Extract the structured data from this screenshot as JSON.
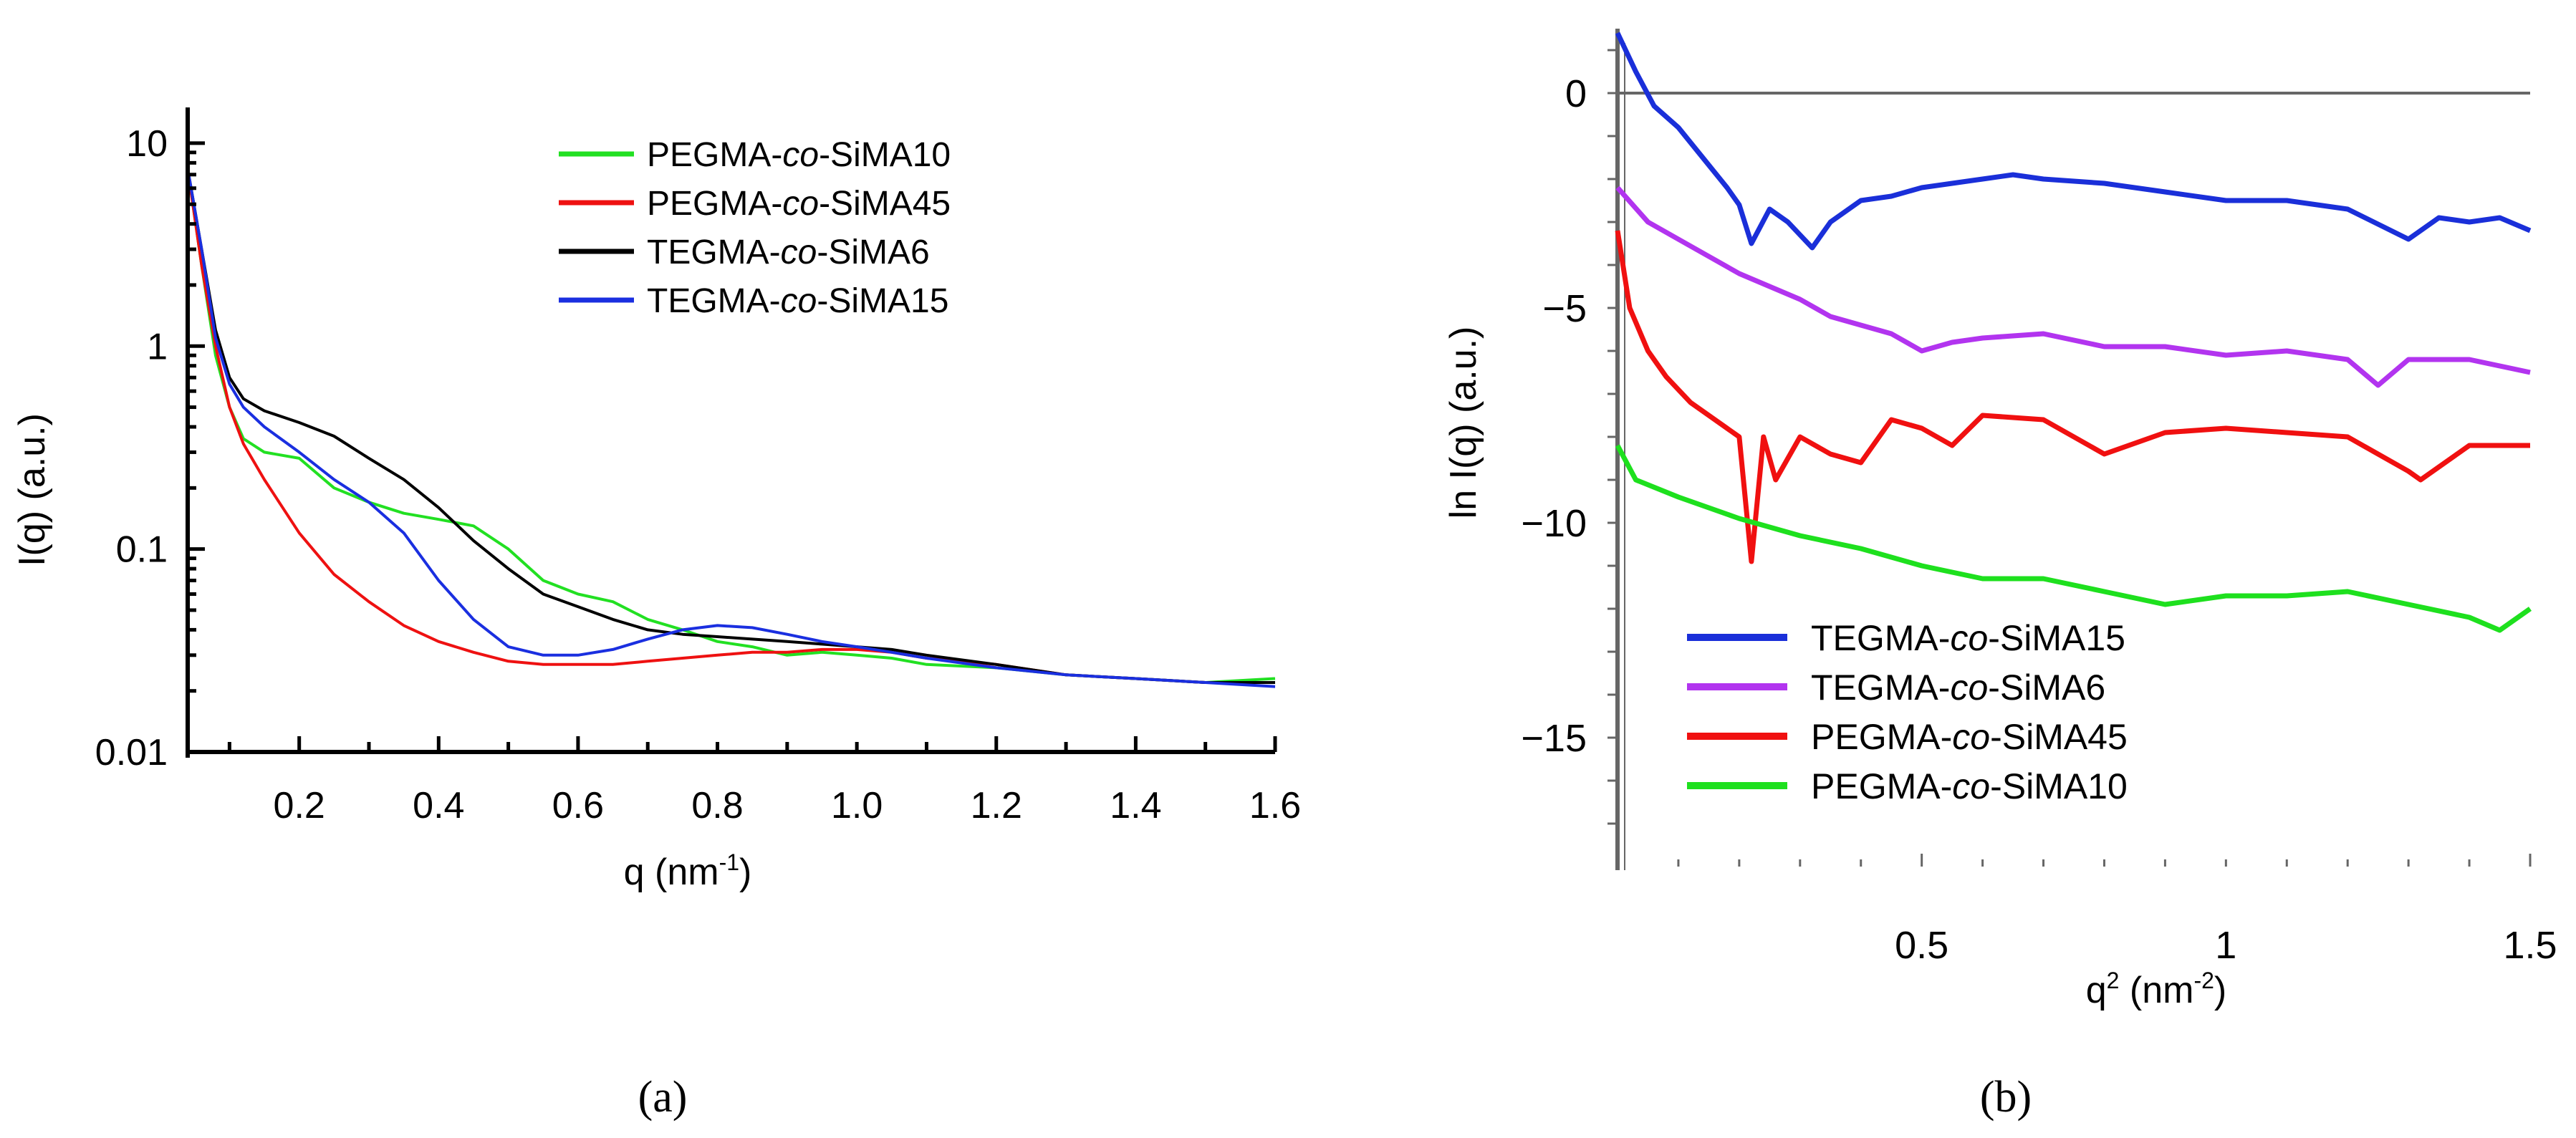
{
  "colors": {
    "green": "#22e022",
    "red": "#ee1111",
    "black": "#000000",
    "blue": "#1a2fe0",
    "blue_b": "#1a2fd9",
    "purple": "#b234ef",
    "red_b": "#f01010",
    "green_b": "#1ee01e",
    "axis": "#000000",
    "axis_b": "#666666"
  },
  "chart_data": [
    {
      "type": "line",
      "title": "",
      "panel_label": "(a)",
      "xlabel_base": "q (nm",
      "xlabel_sup": "-1",
      "xlabel_tail": ")",
      "ylabel": "I(q) (a.u.)",
      "yscale": "log",
      "xlim": [
        0.04,
        1.6
      ],
      "ylim": [
        0.01,
        15
      ],
      "xticks": [
        "0.2",
        "0.4",
        "0.6",
        "0.8",
        "1.0",
        "1.2",
        "1.4",
        "1.6"
      ],
      "yticks": [
        "0.01",
        "0.1",
        "1",
        "10"
      ],
      "legend_position": "top-right",
      "series": [
        {
          "name": "PEGMA-co-SiMA10",
          "name_pre": "PEGMA-",
          "name_it": "co",
          "name_post": "-SiMA10",
          "color_key": "green",
          "x": [
            0.04,
            0.06,
            0.08,
            0.1,
            0.12,
            0.15,
            0.2,
            0.25,
            0.3,
            0.35,
            0.4,
            0.45,
            0.5,
            0.55,
            0.6,
            0.65,
            0.7,
            0.75,
            0.8,
            0.85,
            0.9,
            0.95,
            1.0,
            1.05,
            1.1,
            1.2,
            1.3,
            1.4,
            1.5,
            1.6
          ],
          "y": [
            7.5,
            2.5,
            0.9,
            0.5,
            0.35,
            0.3,
            0.28,
            0.2,
            0.17,
            0.15,
            0.14,
            0.13,
            0.1,
            0.07,
            0.06,
            0.055,
            0.045,
            0.04,
            0.035,
            0.033,
            0.03,
            0.031,
            0.03,
            0.029,
            0.027,
            0.026,
            0.024,
            0.023,
            0.022,
            0.023
          ]
        },
        {
          "name": "PEGMA-co-SiMA45",
          "name_pre": "PEGMA-",
          "name_it": "co",
          "name_post": "-SiMA45",
          "color_key": "red",
          "x": [
            0.04,
            0.06,
            0.08,
            0.1,
            0.12,
            0.15,
            0.2,
            0.25,
            0.3,
            0.35,
            0.4,
            0.45,
            0.5,
            0.55,
            0.6,
            0.65,
            0.7,
            0.75,
            0.8,
            0.85,
            0.9,
            0.95,
            1.0,
            1.05,
            1.1,
            1.2,
            1.3,
            1.4,
            1.5,
            1.6
          ],
          "y": [
            7.5,
            2.5,
            1.0,
            0.5,
            0.33,
            0.22,
            0.12,
            0.075,
            0.055,
            0.042,
            0.035,
            0.031,
            0.028,
            0.027,
            0.027,
            0.027,
            0.028,
            0.029,
            0.03,
            0.031,
            0.031,
            0.032,
            0.032,
            0.031,
            0.029,
            0.027,
            0.024,
            0.023,
            0.022,
            0.022
          ]
        },
        {
          "name": "TEGMA-co-SiMA6",
          "name_pre": "TEGMA-",
          "name_it": "co",
          "name_post": "-SiMA6",
          "color_key": "black",
          "x": [
            0.04,
            0.06,
            0.08,
            0.1,
            0.12,
            0.15,
            0.2,
            0.25,
            0.3,
            0.35,
            0.4,
            0.45,
            0.5,
            0.55,
            0.6,
            0.65,
            0.7,
            0.75,
            0.8,
            0.85,
            0.9,
            0.95,
            1.0,
            1.05,
            1.1,
            1.2,
            1.3,
            1.4,
            1.5,
            1.6
          ],
          "y": [
            7.5,
            3.0,
            1.2,
            0.7,
            0.55,
            0.48,
            0.42,
            0.36,
            0.28,
            0.22,
            0.16,
            0.11,
            0.08,
            0.06,
            0.052,
            0.045,
            0.04,
            0.038,
            0.037,
            0.036,
            0.035,
            0.034,
            0.033,
            0.032,
            0.03,
            0.027,
            0.024,
            0.023,
            0.022,
            0.022
          ]
        },
        {
          "name": "TEGMA-co-SiMA15",
          "name_pre": "TEGMA-",
          "name_it": "co",
          "name_post": "-SiMA15",
          "color_key": "blue",
          "x": [
            0.04,
            0.06,
            0.08,
            0.1,
            0.12,
            0.15,
            0.2,
            0.25,
            0.3,
            0.35,
            0.4,
            0.45,
            0.5,
            0.55,
            0.6,
            0.65,
            0.7,
            0.75,
            0.8,
            0.85,
            0.9,
            0.95,
            1.0,
            1.05,
            1.1,
            1.2,
            1.3,
            1.4,
            1.5,
            1.6
          ],
          "y": [
            7.5,
            3.0,
            1.1,
            0.65,
            0.5,
            0.4,
            0.3,
            0.22,
            0.17,
            0.12,
            0.07,
            0.045,
            0.033,
            0.03,
            0.03,
            0.032,
            0.036,
            0.04,
            0.042,
            0.041,
            0.038,
            0.035,
            0.033,
            0.031,
            0.029,
            0.026,
            0.024,
            0.023,
            0.022,
            0.021
          ]
        }
      ]
    },
    {
      "type": "line",
      "title": "",
      "panel_label": "(b)",
      "xlabel_base": "q",
      "xlabel_sup": "2",
      "xlabel_tail": " (nm",
      "xlabel_sup2": "-2",
      "xlabel_end": ")",
      "ylabel": "ln I(q) (a.u.)",
      "xlim": [
        0,
        1.5
      ],
      "ylim": [
        -18,
        1.5
      ],
      "xticks": [
        "0.5",
        "1",
        "1.5"
      ],
      "yticks": [
        "0",
        "-5",
        "-10",
        "-15"
      ],
      "legend_position": "bottom-left",
      "series": [
        {
          "name": "TEGMA-co-SiMA15",
          "name_pre": "TEGMA-",
          "name_it": "co",
          "name_post": "-SiMA15",
          "color_key": "blue_b",
          "x": [
            0.0,
            0.03,
            0.06,
            0.1,
            0.14,
            0.18,
            0.2,
            0.22,
            0.25,
            0.28,
            0.32,
            0.35,
            0.4,
            0.45,
            0.5,
            0.55,
            0.6,
            0.65,
            0.7,
            0.8,
            0.9,
            1.0,
            1.1,
            1.2,
            1.3,
            1.35,
            1.4,
            1.45,
            1.5
          ],
          "y": [
            1.4,
            0.5,
            -0.3,
            -0.8,
            -1.5,
            -2.2,
            -2.6,
            -3.5,
            -2.7,
            -3.0,
            -3.6,
            -3.0,
            -2.5,
            -2.4,
            -2.2,
            -2.1,
            -2.0,
            -1.9,
            -2.0,
            -2.1,
            -2.3,
            -2.5,
            -2.5,
            -2.7,
            -3.4,
            -2.9,
            -3.0,
            -2.9,
            -3.2
          ]
        },
        {
          "name": "TEGMA-co-SiMA6",
          "name_pre": "TEGMA-",
          "name_it": "co",
          "name_post": "-SiMA6",
          "color_key": "purple",
          "x": [
            0.0,
            0.05,
            0.1,
            0.15,
            0.2,
            0.25,
            0.3,
            0.35,
            0.4,
            0.45,
            0.5,
            0.55,
            0.6,
            0.7,
            0.8,
            0.9,
            1.0,
            1.1,
            1.2,
            1.25,
            1.3,
            1.4,
            1.5
          ],
          "y": [
            -2.2,
            -3.0,
            -3.4,
            -3.8,
            -4.2,
            -4.5,
            -4.8,
            -5.2,
            -5.4,
            -5.6,
            -6.0,
            -5.8,
            -5.7,
            -5.6,
            -5.9,
            -5.9,
            -6.1,
            -6.0,
            -6.2,
            -6.8,
            -6.2,
            -6.2,
            -6.5
          ]
        },
        {
          "name": "PEGMA-co-SiMA45",
          "name_pre": "PEGMA-",
          "name_it": "co",
          "name_post": "-SiMA45",
          "color_key": "red_b",
          "x": [
            0.0,
            0.02,
            0.05,
            0.08,
            0.12,
            0.16,
            0.2,
            0.22,
            0.24,
            0.26,
            0.3,
            0.35,
            0.4,
            0.45,
            0.5,
            0.55,
            0.6,
            0.7,
            0.8,
            0.9,
            1.0,
            1.1,
            1.2,
            1.3,
            1.32,
            1.4,
            1.5
          ],
          "y": [
            -3.2,
            -5.0,
            -6.0,
            -6.6,
            -7.2,
            -7.6,
            -8.0,
            -10.9,
            -8.0,
            -9.0,
            -8.0,
            -8.4,
            -8.6,
            -7.6,
            -7.8,
            -8.2,
            -7.5,
            -7.6,
            -8.4,
            -7.9,
            -7.8,
            -7.9,
            -8.0,
            -8.8,
            -9.0,
            -8.2,
            -8.2
          ]
        },
        {
          "name": "PEGMA-co-SiMA10",
          "name_pre": "PEGMA-",
          "name_it": "co",
          "name_post": "-SiMA10",
          "color_key": "green_b",
          "x": [
            0.0,
            0.03,
            0.1,
            0.2,
            0.3,
            0.4,
            0.5,
            0.6,
            0.7,
            0.8,
            0.9,
            1.0,
            1.1,
            1.2,
            1.3,
            1.4,
            1.45,
            1.5
          ],
          "y": [
            -8.2,
            -9.0,
            -9.4,
            -9.9,
            -10.3,
            -10.6,
            -11.0,
            -11.3,
            -11.3,
            -11.6,
            -11.9,
            -11.7,
            -11.7,
            -11.6,
            -11.9,
            -12.2,
            -12.5,
            -12.0
          ]
        }
      ]
    }
  ]
}
